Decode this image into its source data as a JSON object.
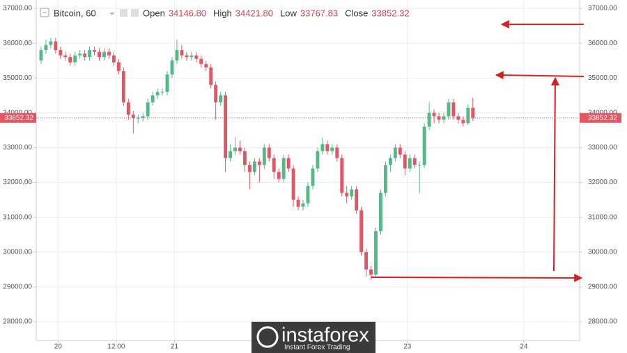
{
  "chart_data": {
    "type": "candlestick",
    "header": {
      "symbol": "Bitcoin, 60",
      "fields": [
        {
          "label": "Open",
          "value": "34146.80"
        },
        {
          "label": "High",
          "value": "34421.80"
        },
        {
          "label": "Low",
          "value": "33767.83"
        },
        {
          "label": "Close",
          "value": "33852.32"
        }
      ]
    },
    "up_color": "#53b987",
    "down_color": "#e35562",
    "price_line_color": "#e35562",
    "open": [
      35500,
      35800,
      35950,
      36050,
      35800,
      35650,
      35600,
      35450,
      35650,
      35700,
      35600,
      35800,
      35750,
      35600,
      35750,
      35650,
      35450,
      35200,
      34300,
      33950,
      33850,
      33850,
      33900,
      34300,
      34500,
      34600,
      34600,
      35100,
      35500,
      35800,
      35650,
      35600,
      35650,
      35550,
      35400,
      35300,
      34800,
      34300,
      34500,
      32700,
      32900,
      33000,
      32900,
      32500,
      32300,
      32600,
      32500,
      33000,
      32700,
      32300,
      32100,
      32700,
      32400,
      31500,
      31300,
      31400,
      31900,
      32400,
      32900,
      33100,
      32900,
      33000,
      32700,
      31700,
      31600,
      31800,
      31200,
      30000,
      29500,
      29350,
      30600,
      31700,
      32500,
      32700,
      33000,
      32800,
      32400,
      32700,
      32500,
      32500,
      33600,
      34000,
      33900,
      33800,
      33900,
      34300,
      33900,
      33800,
      33700,
      34146.8
    ],
    "high": [
      35900,
      36100,
      36150,
      36150,
      35900,
      35750,
      35700,
      35750,
      35800,
      35800,
      35900,
      35900,
      35850,
      35850,
      35850,
      35750,
      35550,
      35300,
      34400,
      34050,
      33950,
      34000,
      34400,
      34600,
      34700,
      34700,
      35200,
      35600,
      36100,
      35950,
      35750,
      35750,
      35750,
      35650,
      35500,
      35400,
      34900,
      34600,
      34600,
      33100,
      33300,
      33200,
      33000,
      32600,
      32700,
      32700,
      33100,
      33100,
      32800,
      32400,
      32800,
      32800,
      32500,
      31600,
      31500,
      32000,
      32500,
      33000,
      33300,
      33200,
      33100,
      33100,
      32800,
      31900,
      31900,
      31900,
      31300,
      30100,
      29600,
      30700,
      31800,
      32600,
      32800,
      33100,
      33100,
      32900,
      32800,
      32800,
      32600,
      33700,
      34300,
      34100,
      34000,
      34000,
      34400,
      34400,
      34000,
      33900,
      34250,
      34421.8
    ],
    "low": [
      35400,
      35700,
      35850,
      35700,
      35550,
      35500,
      35350,
      35350,
      35550,
      35500,
      35500,
      35650,
      35500,
      35500,
      35550,
      35350,
      35100,
      34200,
      33800,
      33400,
      33700,
      33750,
      33800,
      34200,
      34400,
      34500,
      34500,
      35000,
      35400,
      35550,
      35500,
      35500,
      35450,
      35300,
      35200,
      34700,
      33800,
      34200,
      32300,
      32600,
      32800,
      32800,
      32300,
      31800,
      32200,
      32000,
      32400,
      32600,
      32100,
      32000,
      32000,
      32300,
      31300,
      31200,
      31200,
      31300,
      31800,
      32300,
      32800,
      32800,
      32800,
      32600,
      31600,
      31400,
      31500,
      31100,
      29900,
      29300,
      29200,
      29300,
      30500,
      31600,
      32300,
      32600,
      32700,
      32200,
      32300,
      32400,
      31700,
      32400,
      33500,
      33700,
      33700,
      33700,
      33800,
      33800,
      33700,
      33600,
      33650,
      33767.83
    ],
    "close": [
      35800,
      35950,
      36050,
      35800,
      35650,
      35600,
      35450,
      35650,
      35700,
      35600,
      35800,
      35750,
      35600,
      35750,
      35650,
      35450,
      35200,
      34300,
      33950,
      33850,
      33850,
      33900,
      34300,
      34500,
      34600,
      34600,
      35100,
      35500,
      35800,
      35650,
      35600,
      35650,
      35550,
      35400,
      35300,
      34800,
      34300,
      34500,
      32700,
      32900,
      33000,
      32900,
      32500,
      32300,
      32600,
      32500,
      33000,
      32700,
      32300,
      32100,
      32700,
      32400,
      31500,
      31300,
      31400,
      31900,
      32400,
      32900,
      33100,
      32900,
      33000,
      32700,
      31700,
      31600,
      31800,
      31200,
      30000,
      29500,
      29350,
      30600,
      31700,
      32500,
      32700,
      33000,
      32800,
      32400,
      32700,
      32500,
      32500,
      33600,
      34000,
      33900,
      33800,
      33900,
      34300,
      33900,
      33800,
      33700,
      34146.8,
      33852.32
    ],
    "xlim": [
      -1,
      111
    ],
    "xticks": [
      {
        "value": 3.5,
        "label": "20"
      },
      {
        "value": 15.5,
        "label": "12:00"
      },
      {
        "value": 27.5,
        "label": "21"
      },
      {
        "value": 75.5,
        "label": "23"
      },
      {
        "value": 99.5,
        "label": "24"
      }
    ],
    "ylim": [
      27460,
      37240
    ],
    "yticks": [
      {
        "value": 28000,
        "label": "28000.00"
      },
      {
        "value": 29000,
        "label": "29000.00"
      },
      {
        "value": 30000,
        "label": "30000.00"
      },
      {
        "value": 31000,
        "label": "31000.00"
      },
      {
        "value": 32000,
        "label": "32000.00"
      },
      {
        "value": 33000,
        "label": "33000.00"
      },
      {
        "value": 34000,
        "label": "34000.00"
      },
      {
        "value": 35000,
        "label": "35000.00"
      },
      {
        "value": 36000,
        "label": "36000.00"
      },
      {
        "value": 37000,
        "label": "37000.00"
      }
    ],
    "grid": true,
    "watermark": {
      "brand": "instaforex",
      "tagline": "Instant Forex Trading"
    }
  }
}
